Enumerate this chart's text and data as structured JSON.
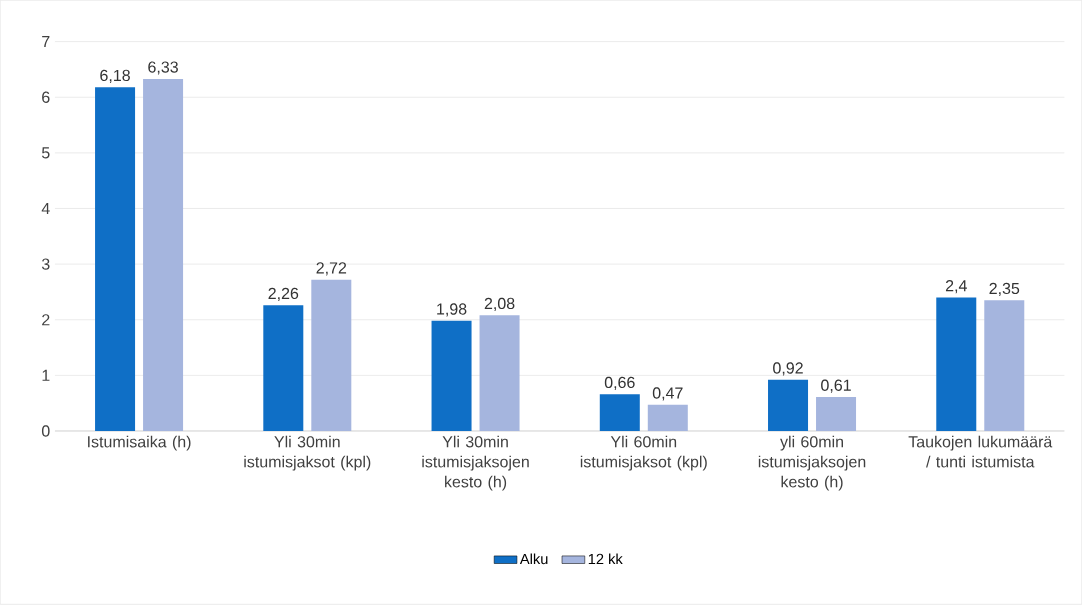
{
  "chart_data": {
    "type": "bar",
    "categories": [
      "Istumisaika (h)",
      "Yli 30min istumisjaksot (kpl)",
      "Yli 30min istumisjaksojen kesto (h)",
      "Yli 60min istumisjaksot (kpl)",
      "yli 60min istumisjaksojen kesto (h)",
      "Taukojen lukumäärä / tunti istumista"
    ],
    "series": [
      {
        "name": "Alku",
        "color": "#0f6fc6",
        "values": [
          6.18,
          2.26,
          1.98,
          0.66,
          0.92,
          2.4
        ],
        "value_labels": [
          "6,18",
          "2,26",
          "1,98",
          "0,66",
          "0,92",
          "2,4"
        ]
      },
      {
        "name": "12 kk",
        "color": "#a5b5de",
        "values": [
          6.33,
          2.72,
          2.08,
          0.47,
          0.61,
          2.35
        ],
        "value_labels": [
          "6,33",
          "2,72",
          "2,08",
          "0,47",
          "0,61",
          "2,35"
        ]
      }
    ],
    "ylim": [
      0,
      7
    ],
    "yticks": [
      0,
      1,
      2,
      3,
      4,
      5,
      6,
      7
    ],
    "grid": "y",
    "legend": "bottom"
  }
}
